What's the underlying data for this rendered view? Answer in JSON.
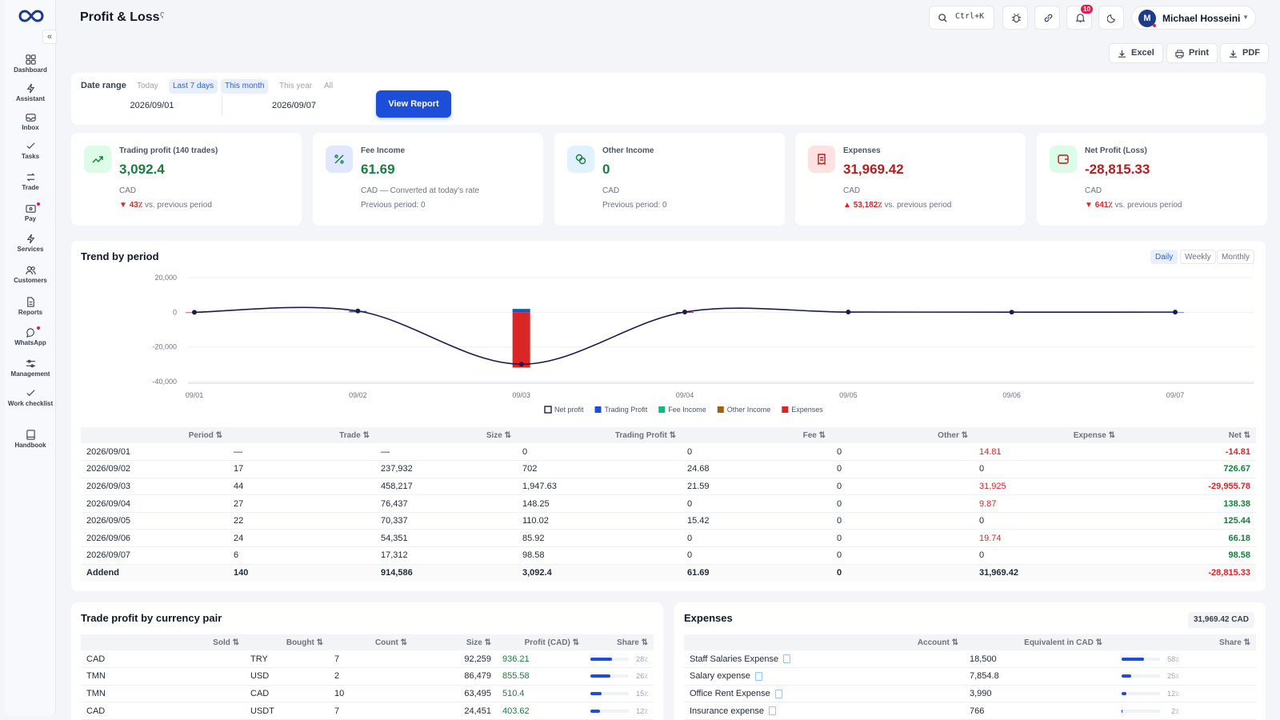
{
  "app": {
    "title": "Profit & Loss"
  },
  "sidebar": {
    "collapse_label": "«",
    "items": [
      {
        "label": "Dashboard",
        "icon": "dashboard-icon"
      },
      {
        "label": "Assistant",
        "icon": "bolt-icon"
      },
      {
        "label": "Inbox",
        "icon": "inbox-icon"
      },
      {
        "label": "Tasks",
        "icon": "check-icon"
      },
      {
        "label": "Trade",
        "icon": "swap-icon"
      },
      {
        "label": "Pay",
        "icon": "wallet-icon"
      },
      {
        "label": "Services",
        "icon": "bolt-icon"
      },
      {
        "label": "Customers",
        "icon": "users-icon"
      },
      {
        "label": "Reports",
        "icon": "file-icon"
      },
      {
        "label": "WhatsApp",
        "icon": "chat-icon"
      },
      {
        "label": "Management",
        "icon": "sliders-icon"
      },
      {
        "label": "Work checklist",
        "icon": "check-icon"
      },
      {
        "label": "Handbook",
        "icon": "book-icon"
      }
    ]
  },
  "topbar": {
    "search_shortcut": "Ctrl+K",
    "notifications_count": "10",
    "user": {
      "initial": "M",
      "name": "Michael Hosseini"
    }
  },
  "export": {
    "excel": "Excel",
    "print": "Print",
    "pdf": "PDF"
  },
  "filters": {
    "date_range_label": "Date range",
    "chips": [
      "Today",
      "Last 7 days",
      "This month",
      "This year",
      "All"
    ],
    "from": "2026/09/01",
    "to": "2026/09/07",
    "view_report": "View Report"
  },
  "kpis": [
    {
      "title": "Trading profit (140 trades)",
      "value": "3,092.4",
      "currency": "CAD",
      "arrow": "▼",
      "change": "43٪",
      "sub": "vs. previous period",
      "color": "#15803d",
      "icon_bg": "#dcfce7",
      "icon": "trend-up-icon"
    },
    {
      "title": "Fee Income",
      "value": "61.69",
      "currency": "CAD — Converted at today's rate",
      "sub": "Previous period: 0",
      "color": "#15803d",
      "icon_bg": "#e0e7ff",
      "icon": "percent-icon"
    },
    {
      "title": "Other Income",
      "value": "0",
      "currency": "CAD",
      "sub": "Previous period: 0",
      "color": "#15803d",
      "icon_bg": "#e0f2fe",
      "icon": "coins-icon"
    },
    {
      "title": "Expenses",
      "value": "31,969.42",
      "currency": "CAD",
      "arrow": "▲",
      "change": "53,182٪",
      "sub": "vs. previous period",
      "color": "#b91c1c",
      "icon_bg": "#fee2e2",
      "icon": "receipt-icon"
    },
    {
      "title": "Net Profit (Loss)",
      "value": "-28,815.33",
      "currency": "CAD",
      "arrow": "▼",
      "change": "641٪",
      "sub": "vs. previous period",
      "color": "#b91c1c",
      "icon_bg": "#dcfce7",
      "icon": "wallet-icon"
    }
  ],
  "trend": {
    "title": "Trend by period",
    "periods": [
      "Daily",
      "Weekly",
      "Monthly"
    ]
  },
  "chart_data": {
    "type": "line",
    "x": [
      "09/01",
      "09/02",
      "09/03",
      "09/04",
      "09/05",
      "09/06",
      "09/07"
    ],
    "ylim": [
      -40000,
      20000
    ],
    "yticks": [
      "20,000",
      "0",
      "-20,000",
      "-40,000"
    ],
    "series": [
      {
        "name": "Net profit",
        "values": [
          -14.81,
          726.67,
          -29955.78,
          138.38,
          125.44,
          66.18,
          98.58
        ],
        "color": "#1e1b4b"
      },
      {
        "name": "Trading Profit",
        "values": [
          0,
          702,
          1947.63,
          148.25,
          110.02,
          85.92,
          98.58
        ],
        "color": "#1d4ed8"
      },
      {
        "name": "Fee Income",
        "values": [
          0,
          24.68,
          21.59,
          0,
          15.42,
          0,
          0
        ],
        "color": "#10b981"
      },
      {
        "name": "Other Income",
        "values": [
          0,
          0,
          0,
          0,
          0,
          0,
          0
        ],
        "color": "#a16207"
      },
      {
        "name": "Expenses",
        "values": [
          14.81,
          0,
          31925,
          9.87,
          0,
          19.74,
          0
        ],
        "color": "#dc2626"
      }
    ]
  },
  "period_table": {
    "headers": [
      "Period ⇅",
      "Trade ⇅",
      "Size ⇅",
      "Trading Profit ⇅",
      "Fee ⇅",
      "Other ⇅",
      "Expense ⇅",
      "Net ⇅"
    ],
    "rows": [
      [
        "2026/09/01",
        "—",
        "—",
        "0",
        "0",
        "0",
        "14.81",
        "-14.81"
      ],
      [
        "2026/09/02",
        "17",
        "237,932",
        "702",
        "24.68",
        "0",
        "0",
        "726.67"
      ],
      [
        "2026/09/03",
        "44",
        "458,217",
        "1,947.63",
        "21.59",
        "0",
        "31,925",
        "-29,955.78"
      ],
      [
        "2026/09/04",
        "27",
        "76,437",
        "148.25",
        "0",
        "0",
        "9.87",
        "138.38"
      ],
      [
        "2026/09/05",
        "22",
        "70,337",
        "110.02",
        "15.42",
        "0",
        "0",
        "125.44"
      ],
      [
        "2026/09/06",
        "24",
        "54,351",
        "85.92",
        "0",
        "0",
        "19.74",
        "66.18"
      ],
      [
        "2026/09/07",
        "6",
        "17,312",
        "98.58",
        "0",
        "0",
        "0",
        "98.58"
      ]
    ],
    "total": [
      "Addend",
      "140",
      "914,586",
      "3,092.4",
      "61.69",
      "0",
      "31,969.42",
      "-28,815.33"
    ]
  },
  "currency_pairs": {
    "title": "Trade profit by currency pair",
    "headers": [
      "Sold ⇅",
      "Bought ⇅",
      "Count ⇅",
      "Size ⇅",
      "Profit (CAD) ⇅",
      "Share ⇅"
    ],
    "rows": [
      {
        "sold": "CAD",
        "bought": "TRY",
        "count": "7",
        "size": "92,259",
        "profit": "936.21",
        "share": 28,
        "share_label": "28٪"
      },
      {
        "sold": "TMN",
        "bought": "USD",
        "count": "2",
        "size": "86,479",
        "profit": "855.58",
        "share": 26,
        "share_label": "26٪"
      },
      {
        "sold": "TMN",
        "bought": "CAD",
        "count": "10",
        "size": "63,495",
        "profit": "510.4",
        "share": 15,
        "share_label": "15٪"
      },
      {
        "sold": "CAD",
        "bought": "USDT",
        "count": "7",
        "size": "24,451",
        "profit": "403.62",
        "share": 12,
        "share_label": "12٪"
      }
    ]
  },
  "expenses": {
    "title": "Expenses",
    "total": "31,969.42 CAD",
    "headers": [
      "Account ⇅",
      "Equivalent in CAD ⇅",
      "Share ⇅"
    ],
    "rows": [
      {
        "account": "Staff Salaries Expense",
        "amount": "18,500",
        "share": 58,
        "share_label": "58٪"
      },
      {
        "account": "Salary expense",
        "amount": "7,854.8",
        "share": 25,
        "share_label": "25٪"
      },
      {
        "account": "Office Rent Expense",
        "amount": "3,990",
        "share": 12,
        "share_label": "12٪"
      },
      {
        "account": "Insurance expense",
        "amount": "766",
        "share": 2,
        "share_label": "2٪"
      }
    ]
  }
}
